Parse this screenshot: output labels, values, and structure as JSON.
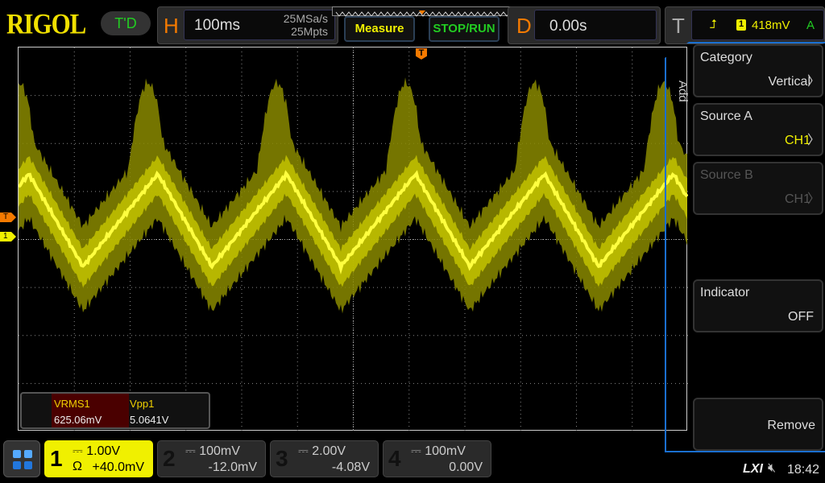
{
  "brand": "RIGOL",
  "mode": "T'D",
  "horizontal": {
    "label": "H",
    "timebase": "100ms",
    "sample_rate": "25MSa/s",
    "memory_depth": "25Mpts"
  },
  "buttons": {
    "measure": "Measure",
    "stop_run": "STOP/RUN"
  },
  "delay": {
    "label": "D",
    "value": "0.00s"
  },
  "trigger": {
    "label": "T",
    "source": "1",
    "level": "418mV",
    "sweep": "A",
    "marker": "T"
  },
  "markers": {
    "trigger_level": "T",
    "ch1": "1"
  },
  "measurements": [
    {
      "name": "VRMS1",
      "value": "625.06mV"
    },
    {
      "name": "Vpp1",
      "value": "5.0641V"
    }
  ],
  "menu": {
    "tab": "Add",
    "items": [
      {
        "title": "Category",
        "value": "Vertical"
      },
      {
        "title": "Source A",
        "value": "CH1"
      },
      {
        "title": "Source B",
        "value": "CH1"
      },
      {
        "title": "Indicator",
        "value": "OFF"
      },
      {
        "title": "",
        "value": "Remove"
      }
    ]
  },
  "channels": [
    {
      "num": "1",
      "scale": "1.00V",
      "offset": "+40.0mV",
      "coupling": "Ω",
      "active": true
    },
    {
      "num": "2",
      "scale": "100mV",
      "offset": "-12.0mV"
    },
    {
      "num": "3",
      "scale": "2.00V",
      "offset": "-4.08V"
    },
    {
      "num": "4",
      "scale": "100mV",
      "offset": "0.00V"
    }
  ],
  "status": {
    "lxi": "LXI",
    "time": "18:42"
  },
  "colors": {
    "ch1": "#f0f000",
    "accent": "#f57a00",
    "menu_border": "#1a6fd0"
  }
}
